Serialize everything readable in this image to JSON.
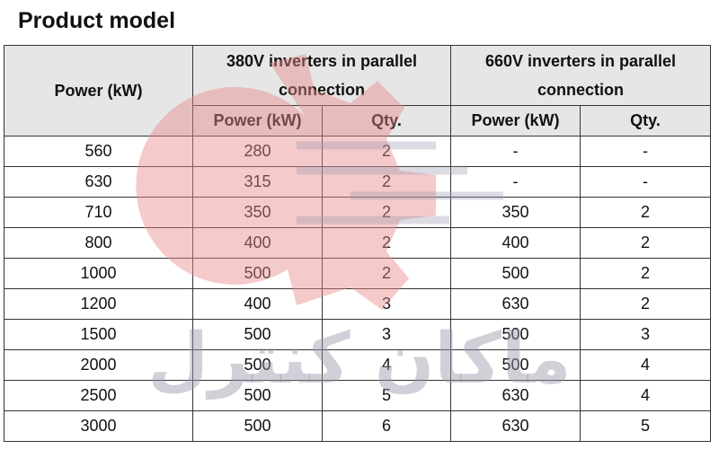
{
  "title": "Product model",
  "table": {
    "header_power": "Power (kW)",
    "group_380": "380V inverters in parallel connection",
    "group_660": "660V inverters in parallel connection",
    "sub_power": "Power (kW)",
    "sub_qty": "Qty.",
    "rows": [
      [
        "560",
        "280",
        "2",
        "-",
        "-"
      ],
      [
        "630",
        "315",
        "2",
        "-",
        "-"
      ],
      [
        "710",
        "350",
        "2",
        "350",
        "2"
      ],
      [
        "800",
        "400",
        "2",
        "400",
        "2"
      ],
      [
        "1000",
        "500",
        "2",
        "500",
        "2"
      ],
      [
        "1200",
        "400",
        "3",
        "630",
        "2"
      ],
      [
        "1500",
        "500",
        "3",
        "500",
        "3"
      ],
      [
        "2000",
        "500",
        "4",
        "500",
        "4"
      ],
      [
        "2500",
        "500",
        "5",
        "630",
        "4"
      ],
      [
        "3000",
        "500",
        "6",
        "630",
        "5"
      ]
    ]
  },
  "watermark": {
    "text": "ماکان کنترل",
    "gear_color": "#e88a8a",
    "text_color": "#9a9ab0"
  }
}
